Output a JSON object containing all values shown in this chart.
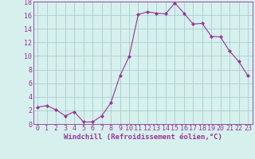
{
  "x": [
    0,
    1,
    2,
    3,
    4,
    5,
    6,
    7,
    8,
    9,
    10,
    11,
    12,
    13,
    14,
    15,
    16,
    17,
    18,
    19,
    20,
    21,
    22,
    23
  ],
  "y": [
    2.5,
    2.7,
    2.1,
    1.2,
    1.8,
    0.3,
    0.3,
    1.2,
    3.1,
    7.1,
    9.9,
    16.1,
    16.5,
    16.3,
    16.2,
    17.8,
    16.3,
    14.7,
    14.8,
    12.9,
    12.8,
    10.7,
    9.2,
    7.1
  ],
  "line_color": "#993399",
  "marker": "D",
  "marker_size": 2,
  "bg_color": "#d6f0ee",
  "grid_color": "#aacccc",
  "xlabel": "Windchill (Refroidissement éolien,°C)",
  "xlabel_fontsize": 6.5,
  "tick_fontsize": 6,
  "ylim": [
    0,
    18
  ],
  "xlim": [
    -0.5,
    23.5
  ],
  "yticks": [
    0,
    2,
    4,
    6,
    8,
    10,
    12,
    14,
    16,
    18
  ],
  "xticks": [
    0,
    1,
    2,
    3,
    4,
    5,
    6,
    7,
    8,
    9,
    10,
    11,
    12,
    13,
    14,
    15,
    16,
    17,
    18,
    19,
    20,
    21,
    22,
    23
  ]
}
